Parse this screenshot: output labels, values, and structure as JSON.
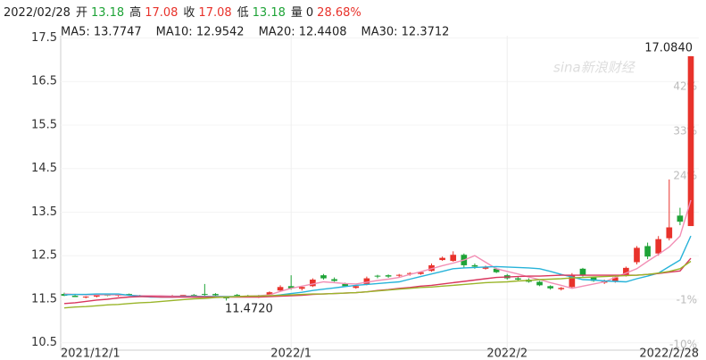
{
  "quote": {
    "date": "2022/02/28",
    "items": [
      {
        "label": "开",
        "value": 13.18,
        "color": "#1ea337"
      },
      {
        "label": "高",
        "value": 17.08,
        "color": "#e8322b"
      },
      {
        "label": "收",
        "value": 17.08,
        "color": "#e8322b"
      },
      {
        "label": "低",
        "value": 13.18,
        "color": "#1ea337"
      },
      {
        "label": "量",
        "value": 0,
        "color": "#222"
      }
    ],
    "change": "28.68%",
    "change_color": "#e8322b"
  },
  "chart_data": {
    "type": "candlestick",
    "watermark": "sina新浪财经",
    "up_color": "#e8322b",
    "down_color": "#1ea337",
    "categories": [
      "2021/12/1",
      null,
      null,
      null,
      null,
      null,
      null,
      null,
      null,
      null,
      null,
      null,
      null,
      null,
      null,
      null,
      null,
      null,
      null,
      null,
      null,
      "2022/1",
      null,
      null,
      null,
      null,
      null,
      null,
      null,
      null,
      null,
      null,
      null,
      null,
      null,
      null,
      null,
      null,
      null,
      null,
      null,
      "2022/2",
      null,
      null,
      null,
      null,
      null,
      null,
      null,
      null,
      null,
      null,
      null,
      null,
      null,
      null,
      null,
      null,
      "2022/2/28"
    ],
    "candles": {
      "open": [
        11.62,
        11.58,
        11.55,
        11.56,
        11.6,
        11.58,
        11.62,
        11.58,
        11.57,
        11.56,
        11.57,
        11.58,
        11.6,
        11.62,
        11.62,
        11.55,
        11.6,
        11.58,
        11.55,
        11.6,
        11.7,
        11.8,
        11.74,
        11.8,
        12.05,
        11.96,
        11.85,
        11.76,
        11.85,
        12.04,
        12.05,
        12.04,
        12.08,
        12.08,
        12.15,
        12.4,
        12.38,
        12.52,
        12.28,
        12.2,
        12.2,
        12.05,
        11.98,
        11.95,
        11.9,
        11.8,
        11.73,
        11.78,
        12.2,
        12.0,
        11.88,
        11.9,
        12.05,
        12.35,
        12.72,
        12.55,
        12.9,
        13.42,
        13.18
      ],
      "high": [
        11.65,
        11.62,
        11.57,
        11.6,
        11.62,
        11.62,
        11.63,
        11.6,
        11.59,
        11.58,
        11.6,
        11.6,
        11.62,
        11.85,
        11.64,
        11.56,
        11.62,
        11.6,
        11.6,
        11.68,
        11.82,
        12.05,
        11.8,
        11.98,
        12.08,
        12.0,
        11.88,
        11.82,
        12.02,
        12.06,
        12.07,
        12.08,
        12.12,
        12.14,
        12.32,
        12.48,
        12.6,
        12.55,
        12.32,
        12.27,
        12.22,
        12.08,
        12.02,
        11.98,
        11.92,
        11.82,
        11.78,
        12.1,
        12.22,
        12.02,
        11.95,
        12.05,
        12.25,
        12.72,
        12.8,
        12.95,
        14.25,
        13.6,
        17.08
      ],
      "low": [
        11.57,
        11.55,
        11.52,
        11.54,
        11.57,
        11.56,
        11.58,
        11.56,
        11.55,
        11.54,
        11.55,
        11.56,
        11.57,
        11.58,
        11.58,
        11.47,
        11.57,
        11.55,
        11.53,
        11.58,
        11.68,
        11.72,
        11.7,
        11.78,
        11.95,
        11.9,
        11.78,
        11.74,
        11.82,
        11.98,
        11.99,
        12.0,
        12.04,
        12.06,
        12.13,
        12.38,
        12.36,
        12.22,
        12.2,
        12.18,
        12.1,
        11.95,
        11.92,
        11.88,
        11.8,
        11.72,
        11.7,
        11.75,
        12.02,
        11.9,
        11.85,
        11.88,
        12.02,
        12.3,
        12.42,
        12.5,
        12.85,
        13.2,
        13.18
      ],
      "close": [
        11.58,
        11.55,
        11.56,
        11.59,
        11.58,
        11.62,
        11.59,
        11.57,
        11.56,
        11.57,
        11.58,
        11.6,
        11.58,
        11.6,
        11.59,
        11.52,
        11.58,
        11.57,
        11.58,
        11.66,
        11.78,
        11.75,
        11.78,
        11.95,
        11.98,
        11.92,
        11.8,
        11.8,
        11.98,
        12.02,
        12.02,
        12.06,
        12.1,
        12.12,
        12.28,
        12.45,
        12.52,
        12.28,
        12.25,
        12.24,
        12.12,
        11.98,
        11.95,
        11.9,
        11.82,
        11.75,
        11.76,
        12.05,
        12.05,
        11.92,
        11.92,
        12.0,
        12.22,
        12.68,
        12.48,
        12.88,
        13.15,
        13.28,
        17.08
      ]
    },
    "series": [
      {
        "name": "MA5: 13.7747",
        "color": "#f28fb5",
        "values": [
          11.62,
          11.61,
          11.6,
          11.6,
          11.6,
          11.6,
          11.59,
          11.58,
          11.58,
          11.58,
          11.57,
          11.57,
          11.57,
          11.56,
          11.56,
          11.55,
          11.56,
          11.57,
          11.58,
          11.6,
          11.68,
          11.75,
          11.8,
          11.85,
          11.9,
          11.88,
          11.86,
          11.85,
          11.89,
          11.93,
          11.96,
          12.0,
          12.07,
          12.13,
          12.2,
          12.27,
          12.33,
          12.4,
          12.5,
          12.35,
          12.2,
          12.14,
          12.08,
          12.01,
          11.95,
          11.88,
          11.82,
          11.75,
          11.8,
          11.85,
          11.9,
          12.0,
          12.1,
          12.2,
          12.37,
          12.53,
          12.7,
          12.95,
          13.7747
        ]
      },
      {
        "name": "MA10: 12.9542",
        "color": "#27b3d9",
        "values": [
          11.6,
          11.61,
          11.61,
          11.62,
          11.62,
          11.62,
          11.59,
          11.57,
          11.55,
          11.55,
          11.55,
          11.56,
          11.56,
          11.56,
          11.56,
          11.56,
          11.56,
          11.56,
          11.57,
          11.57,
          11.6,
          11.63,
          11.66,
          11.7,
          11.73,
          11.76,
          11.79,
          11.82,
          11.84,
          11.86,
          11.88,
          11.9,
          11.96,
          12.02,
          12.08,
          12.14,
          12.2,
          12.22,
          12.23,
          12.24,
          12.25,
          12.24,
          12.23,
          12.22,
          12.2,
          12.14,
          12.07,
          12.01,
          11.95,
          11.94,
          11.92,
          11.91,
          11.9,
          11.97,
          12.03,
          12.1,
          12.25,
          12.4,
          12.9542
        ]
      },
      {
        "name": "MA20: 12.4408",
        "color": "#d9365e",
        "values": [
          11.4,
          11.42,
          11.45,
          11.48,
          11.5,
          11.53,
          11.55,
          11.56,
          11.56,
          11.55,
          11.55,
          11.55,
          11.55,
          11.55,
          11.55,
          11.55,
          11.55,
          11.55,
          11.55,
          11.56,
          11.57,
          11.58,
          11.59,
          11.61,
          11.62,
          11.63,
          11.64,
          11.65,
          11.67,
          11.7,
          11.72,
          11.75,
          11.77,
          11.8,
          11.82,
          11.85,
          11.88,
          11.91,
          11.94,
          11.97,
          12.0,
          12.01,
          12.02,
          12.03,
          12.03,
          12.04,
          12.05,
          12.05,
          12.05,
          12.05,
          12.05,
          12.05,
          12.05,
          12.05,
          12.07,
          12.09,
          12.12,
          12.15,
          12.4408
        ]
      },
      {
        "name": "MA30: 12.3712",
        "color": "#9ab52a",
        "values": [
          11.3,
          11.32,
          11.33,
          11.35,
          11.37,
          11.38,
          11.4,
          11.42,
          11.43,
          11.45,
          11.47,
          11.49,
          11.51,
          11.52,
          11.54,
          11.55,
          11.56,
          11.57,
          11.57,
          11.58,
          11.59,
          11.6,
          11.61,
          11.62,
          11.62,
          11.63,
          11.64,
          11.65,
          11.67,
          11.69,
          11.71,
          11.73,
          11.75,
          11.77,
          11.78,
          11.8,
          11.82,
          11.84,
          11.86,
          11.88,
          11.89,
          11.9,
          11.92,
          11.93,
          11.95,
          11.96,
          11.97,
          11.99,
          12.0,
          12.01,
          12.02,
          12.03,
          12.04,
          12.05,
          12.07,
          12.1,
          12.14,
          12.2,
          12.3712
        ]
      }
    ],
    "ylim": [
      10.33,
      17.55
    ],
    "yticks": [
      10.5,
      11.5,
      12.5,
      13.5,
      14.5,
      15.5,
      16.5,
      17.5
    ],
    "y2lim": [
      -11.1,
      52.3
    ],
    "y2ticks": [
      {
        "value": -10,
        "label": "-10%"
      },
      {
        "value": -1,
        "label": "-1%"
      },
      {
        "value": 24,
        "label": "24%"
      },
      {
        "value": 33,
        "label": "33%"
      },
      {
        "value": 42,
        "label": "42%"
      }
    ],
    "annotations": [
      {
        "label": "17.0840"
      },
      {
        "label": "11.4720"
      }
    ],
    "grid": true
  }
}
